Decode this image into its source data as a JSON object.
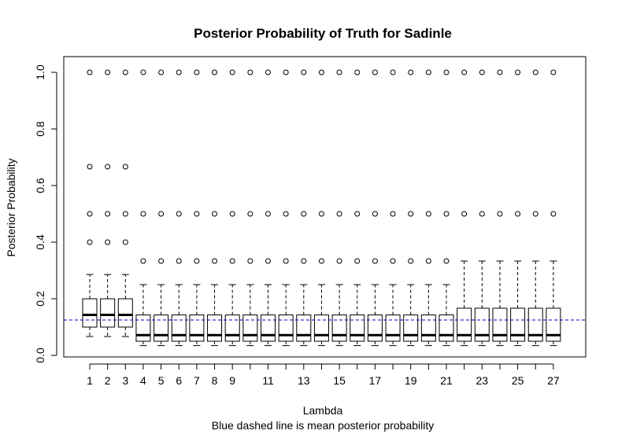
{
  "chart_data": {
    "type": "boxplot",
    "title": "Posterior Probability of Truth for Sadinle",
    "xlabel": "Lambda",
    "ylabel": "Posterior Probability",
    "subtitle": "Blue dashed line is mean posterior probability",
    "ylim": [
      0,
      1.0
    ],
    "yticks": [
      "0.0",
      "0.2",
      "0.4",
      "0.6",
      "0.8",
      "1.0"
    ],
    "x_tick_labels_shown": [
      "1",
      "2",
      "3",
      "4",
      "5",
      "6",
      "7",
      "8",
      "9",
      "11",
      "13",
      "15",
      "17",
      "19",
      "21",
      "23",
      "25",
      "27"
    ],
    "categories": [
      1,
      2,
      3,
      4,
      5,
      6,
      7,
      8,
      9,
      10,
      11,
      12,
      13,
      14,
      15,
      16,
      17,
      18,
      19,
      20,
      21,
      22,
      23,
      24,
      25,
      26,
      27
    ],
    "mean_line": {
      "value": 0.125,
      "color": "#0000cc",
      "style": "dashed"
    },
    "boxes": [
      {
        "x": 1,
        "lower_whisker": 0.0667,
        "q1": 0.1,
        "median": 0.1429,
        "q3": 0.2,
        "upper_whisker": 0.2857,
        "outliers": [
          0.4,
          0.5,
          0.6667,
          1.0
        ]
      },
      {
        "x": 2,
        "lower_whisker": 0.0667,
        "q1": 0.1,
        "median": 0.1429,
        "q3": 0.2,
        "upper_whisker": 0.2857,
        "outliers": [
          0.4,
          0.5,
          0.6667,
          1.0
        ]
      },
      {
        "x": 3,
        "lower_whisker": 0.0667,
        "q1": 0.1,
        "median": 0.1429,
        "q3": 0.2,
        "upper_whisker": 0.2857,
        "outliers": [
          0.4,
          0.5,
          0.6667,
          1.0
        ]
      },
      {
        "x": 4,
        "lower_whisker": 0.0345,
        "q1": 0.05,
        "median": 0.0714,
        "q3": 0.1429,
        "upper_whisker": 0.25,
        "outliers": [
          0.3333,
          0.5,
          1.0
        ]
      },
      {
        "x": 5,
        "lower_whisker": 0.0345,
        "q1": 0.05,
        "median": 0.0714,
        "q3": 0.1429,
        "upper_whisker": 0.25,
        "outliers": [
          0.3333,
          0.5,
          1.0
        ]
      },
      {
        "x": 6,
        "lower_whisker": 0.0345,
        "q1": 0.05,
        "median": 0.0714,
        "q3": 0.1429,
        "upper_whisker": 0.25,
        "outliers": [
          0.3333,
          0.5,
          1.0
        ]
      },
      {
        "x": 7,
        "lower_whisker": 0.0345,
        "q1": 0.05,
        "median": 0.0714,
        "q3": 0.1429,
        "upper_whisker": 0.25,
        "outliers": [
          0.3333,
          0.5,
          1.0
        ]
      },
      {
        "x": 8,
        "lower_whisker": 0.0345,
        "q1": 0.05,
        "median": 0.0714,
        "q3": 0.1429,
        "upper_whisker": 0.25,
        "outliers": [
          0.3333,
          0.5,
          1.0
        ]
      },
      {
        "x": 9,
        "lower_whisker": 0.0345,
        "q1": 0.05,
        "median": 0.0714,
        "q3": 0.1429,
        "upper_whisker": 0.25,
        "outliers": [
          0.3333,
          0.5,
          1.0
        ]
      },
      {
        "x": 10,
        "lower_whisker": 0.0345,
        "q1": 0.05,
        "median": 0.0714,
        "q3": 0.1429,
        "upper_whisker": 0.25,
        "outliers": [
          0.3333,
          0.5,
          1.0
        ]
      },
      {
        "x": 11,
        "lower_whisker": 0.0345,
        "q1": 0.05,
        "median": 0.0714,
        "q3": 0.1429,
        "upper_whisker": 0.25,
        "outliers": [
          0.3333,
          0.5,
          1.0
        ]
      },
      {
        "x": 12,
        "lower_whisker": 0.0345,
        "q1": 0.05,
        "median": 0.0714,
        "q3": 0.1429,
        "upper_whisker": 0.25,
        "outliers": [
          0.3333,
          0.5,
          1.0
        ]
      },
      {
        "x": 13,
        "lower_whisker": 0.0345,
        "q1": 0.05,
        "median": 0.0714,
        "q3": 0.1429,
        "upper_whisker": 0.25,
        "outliers": [
          0.3333,
          0.5,
          1.0
        ]
      },
      {
        "x": 14,
        "lower_whisker": 0.0345,
        "q1": 0.05,
        "median": 0.0714,
        "q3": 0.1429,
        "upper_whisker": 0.25,
        "outliers": [
          0.3333,
          0.5,
          1.0
        ]
      },
      {
        "x": 15,
        "lower_whisker": 0.0345,
        "q1": 0.05,
        "median": 0.0714,
        "q3": 0.1429,
        "upper_whisker": 0.25,
        "outliers": [
          0.3333,
          0.5,
          1.0
        ]
      },
      {
        "x": 16,
        "lower_whisker": 0.0345,
        "q1": 0.05,
        "median": 0.0714,
        "q3": 0.1429,
        "upper_whisker": 0.25,
        "outliers": [
          0.3333,
          0.5,
          1.0
        ]
      },
      {
        "x": 17,
        "lower_whisker": 0.0345,
        "q1": 0.05,
        "median": 0.0714,
        "q3": 0.1429,
        "upper_whisker": 0.25,
        "outliers": [
          0.3333,
          0.5,
          1.0
        ]
      },
      {
        "x": 18,
        "lower_whisker": 0.0345,
        "q1": 0.05,
        "median": 0.0714,
        "q3": 0.1429,
        "upper_whisker": 0.25,
        "outliers": [
          0.3333,
          0.5,
          1.0
        ]
      },
      {
        "x": 19,
        "lower_whisker": 0.0345,
        "q1": 0.05,
        "median": 0.0714,
        "q3": 0.1429,
        "upper_whisker": 0.25,
        "outliers": [
          0.3333,
          0.5,
          1.0
        ]
      },
      {
        "x": 20,
        "lower_whisker": 0.0345,
        "q1": 0.05,
        "median": 0.0714,
        "q3": 0.1429,
        "upper_whisker": 0.25,
        "outliers": [
          0.3333,
          0.5,
          1.0
        ]
      },
      {
        "x": 21,
        "lower_whisker": 0.0345,
        "q1": 0.05,
        "median": 0.0714,
        "q3": 0.1429,
        "upper_whisker": 0.25,
        "outliers": [
          0.3333,
          0.5,
          1.0
        ]
      },
      {
        "x": 22,
        "lower_whisker": 0.0345,
        "q1": 0.05,
        "median": 0.0714,
        "q3": 0.1667,
        "upper_whisker": 0.3333,
        "outliers": [
          0.5,
          1.0
        ]
      },
      {
        "x": 23,
        "lower_whisker": 0.0345,
        "q1": 0.05,
        "median": 0.0714,
        "q3": 0.1667,
        "upper_whisker": 0.3333,
        "outliers": [
          0.5,
          1.0
        ]
      },
      {
        "x": 24,
        "lower_whisker": 0.0345,
        "q1": 0.05,
        "median": 0.0714,
        "q3": 0.1667,
        "upper_whisker": 0.3333,
        "outliers": [
          0.5,
          1.0
        ]
      },
      {
        "x": 25,
        "lower_whisker": 0.0345,
        "q1": 0.05,
        "median": 0.0714,
        "q3": 0.1667,
        "upper_whisker": 0.3333,
        "outliers": [
          0.5,
          1.0
        ]
      },
      {
        "x": 26,
        "lower_whisker": 0.0345,
        "q1": 0.05,
        "median": 0.0714,
        "q3": 0.1667,
        "upper_whisker": 0.3333,
        "outliers": [
          0.5,
          1.0
        ]
      },
      {
        "x": 27,
        "lower_whisker": 0.0345,
        "q1": 0.05,
        "median": 0.0714,
        "q3": 0.1667,
        "upper_whisker": 0.3333,
        "outliers": [
          0.5,
          1.0
        ]
      }
    ],
    "grid": false,
    "legend": "none"
  }
}
